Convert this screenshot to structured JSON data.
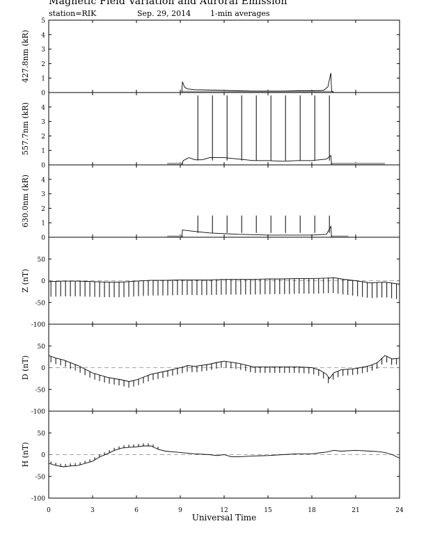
{
  "header": {
    "title": "Magnetic Field Variation and Auroral Emission",
    "station": "station=RIK",
    "date": "Sep. 29, 2014",
    "averaging": "1-min averages"
  },
  "chart_data": [
    {
      "type": "line",
      "ylabel": "427.8nm (kR)",
      "ylim": [
        0,
        5
      ],
      "yticks": [
        0,
        1,
        2,
        3,
        4,
        5
      ],
      "xlim": [
        0,
        24
      ],
      "x_ticks": [
        0,
        3,
        6,
        9,
        12,
        15,
        18,
        21,
        24
      ],
      "baseline": null,
      "gray_bars": [
        {
          "x": [
            9.1,
            19.5
          ],
          "y": 0.05
        }
      ],
      "series": [
        {
          "x": [
            0,
            9.1,
            9.15,
            9.3,
            9.5,
            10,
            11,
            12,
            13,
            14,
            15,
            16,
            17,
            18,
            18.8,
            19.1,
            19.3,
            19.35,
            19.5,
            24
          ],
          "y": [
            0,
            0,
            0.75,
            0.35,
            0.25,
            0.2,
            0.18,
            0.15,
            0.12,
            0.1,
            0.1,
            0.1,
            0.12,
            0.12,
            0.15,
            0.4,
            1.35,
            0.1,
            0,
            0
          ]
        }
      ],
      "spikes": []
    },
    {
      "type": "line",
      "ylabel": "557.7nm (kR)",
      "ylim": [
        0,
        5
      ],
      "yticks": [
        0,
        1,
        2,
        3,
        4
      ],
      "xlim": [
        0,
        24
      ],
      "x_ticks": [
        0,
        3,
        6,
        9,
        12,
        15,
        18,
        21,
        24
      ],
      "baseline": null,
      "gray_bars": [
        {
          "x": [
            8.1,
            9.2
          ],
          "y": 0.08
        },
        {
          "x": [
            19.3,
            23
          ],
          "y": 0.08
        }
      ],
      "series": [
        {
          "x": [
            0,
            9.1,
            9.2,
            9.6,
            10,
            10.5,
            11,
            12,
            13,
            14,
            15,
            16,
            17,
            18,
            19,
            19.3,
            19.35,
            24
          ],
          "y": [
            0,
            0,
            0.3,
            0.5,
            0.35,
            0.35,
            0.5,
            0.5,
            0.4,
            0.3,
            0.3,
            0.25,
            0.3,
            0.3,
            0.4,
            0.65,
            0,
            0
          ]
        }
      ],
      "spikes": [
        {
          "x": 10.2,
          "y": 4.8
        },
        {
          "x": 11.2,
          "y": 4.8
        },
        {
          "x": 12.2,
          "y": 4.8
        },
        {
          "x": 13.2,
          "y": 4.8
        },
        {
          "x": 14.2,
          "y": 4.8
        },
        {
          "x": 15.2,
          "y": 4.8
        },
        {
          "x": 16.2,
          "y": 4.8
        },
        {
          "x": 17.2,
          "y": 4.8
        },
        {
          "x": 18.2,
          "y": 4.8
        },
        {
          "x": 19.2,
          "y": 4.8
        }
      ]
    },
    {
      "type": "line",
      "ylabel": "630.0nm (kR)",
      "ylim": [
        0,
        5
      ],
      "yticks": [
        0,
        1,
        2,
        3,
        4
      ],
      "xlim": [
        0,
        24
      ],
      "x_ticks": [
        0,
        3,
        6,
        9,
        12,
        15,
        18,
        21,
        24
      ],
      "baseline": null,
      "gray_bars": [
        {
          "x": [
            8.1,
            9.2
          ],
          "y": 0.05
        },
        {
          "x": [
            19.3,
            20.5
          ],
          "y": 0.05
        }
      ],
      "series": [
        {
          "x": [
            0,
            9.1,
            9.15,
            10,
            11,
            12,
            13,
            14,
            15,
            16,
            17,
            18,
            19,
            19.3,
            19.35,
            24
          ],
          "y": [
            0,
            0,
            0.5,
            0.4,
            0.3,
            0.25,
            0.2,
            0.18,
            0.15,
            0.15,
            0.15,
            0.15,
            0.2,
            0.75,
            0,
            0
          ]
        }
      ],
      "spikes": [
        {
          "x": 10.2,
          "y": 1.5
        },
        {
          "x": 11.2,
          "y": 1.5
        },
        {
          "x": 12.2,
          "y": 1.5
        },
        {
          "x": 13.2,
          "y": 1.5
        },
        {
          "x": 14.2,
          "y": 1.5
        },
        {
          "x": 15.2,
          "y": 1.5
        },
        {
          "x": 16.2,
          "y": 1.5
        },
        {
          "x": 17.2,
          "y": 1.5
        },
        {
          "x": 18.2,
          "y": 1.5
        },
        {
          "x": 19.2,
          "y": 1.5
        }
      ]
    },
    {
      "type": "line",
      "ylabel": "Z (nT)",
      "ylim": [
        -100,
        100
      ],
      "yticks": [
        -100,
        -50,
        0,
        50
      ],
      "xlim": [
        0,
        24
      ],
      "x_ticks": [
        0,
        3,
        6,
        9,
        12,
        15,
        18,
        21,
        24
      ],
      "baseline": 0,
      "gray_bars": [],
      "series": [
        {
          "x": [
            0,
            1,
            2,
            3,
            4,
            5,
            6,
            7,
            8,
            9,
            10,
            11,
            12,
            13,
            14,
            15,
            16,
            17,
            18,
            19,
            19.5,
            20,
            21,
            22,
            23,
            24
          ],
          "y": [
            -2,
            -1,
            -1,
            -2,
            -3,
            -3,
            -1,
            1,
            1,
            2,
            2,
            2,
            3,
            3,
            3,
            4,
            4,
            5,
            5,
            6,
            7,
            4,
            0,
            -5,
            -3,
            -8
          ]
        }
      ],
      "whiskers": {
        "every": 0.333,
        "depth": -35
      }
    },
    {
      "type": "line",
      "ylabel": "D (nT)",
      "ylim": [
        -100,
        100
      ],
      "yticks": [
        -100,
        -50,
        0,
        50
      ],
      "xlim": [
        0,
        24
      ],
      "x_ticks": [
        0,
        3,
        6,
        9,
        12,
        15,
        18,
        21,
        24
      ],
      "baseline": 0,
      "gray_bars": [],
      "series": [
        {
          "x": [
            0,
            0.5,
            1,
            2,
            3,
            4,
            5,
            5.5,
            6,
            7,
            8,
            9,
            9.5,
            10,
            11,
            11.5,
            12,
            13,
            14,
            15,
            16,
            17,
            18,
            18.5,
            19,
            19.2,
            19.5,
            20,
            21,
            22,
            22.5,
            23,
            23.5,
            24
          ],
          "y": [
            28,
            22,
            18,
            5,
            -12,
            -22,
            -28,
            -32,
            -28,
            -15,
            -8,
            0,
            5,
            3,
            8,
            12,
            15,
            10,
            2,
            2,
            2,
            2,
            0,
            -5,
            -15,
            -25,
            -12,
            -5,
            -2,
            5,
            12,
            28,
            20,
            22
          ]
        }
      ],
      "whiskers": {
        "every": 0.333,
        "depth": -14
      }
    },
    {
      "type": "line",
      "ylabel": "H (nT)",
      "ylim": [
        -100,
        100
      ],
      "yticks": [
        -100,
        -50,
        0,
        50
      ],
      "xlim": [
        0,
        24
      ],
      "x_ticks": [
        0,
        3,
        6,
        9,
        12,
        15,
        18,
        21,
        24
      ],
      "baseline": 0,
      "gray_bars": [],
      "series": [
        {
          "x": [
            0,
            0.5,
            1,
            1.5,
            2,
            2.5,
            3,
            3.5,
            4,
            4.5,
            5,
            5.5,
            6,
            6.5,
            7,
            7.5,
            8,
            9,
            10,
            11,
            11.5,
            12,
            12.5,
            13,
            14,
            15,
            16,
            17,
            18,
            18.5,
            19,
            19.5,
            20,
            21,
            22,
            22.5,
            23,
            23.5,
            24
          ],
          "y": [
            -20,
            -25,
            -28,
            -26,
            -25,
            -20,
            -15,
            -5,
            2,
            10,
            15,
            17,
            18,
            20,
            20,
            12,
            8,
            5,
            2,
            0,
            -2,
            0,
            -5,
            -5,
            -3,
            -2,
            0,
            2,
            2,
            4,
            6,
            10,
            8,
            10,
            8,
            7,
            5,
            0,
            -8
          ]
        }
      ],
      "whiskers": {
        "every": 0.333,
        "depth": 6,
        "end": 7.6
      }
    }
  ],
  "xaxis": {
    "label": "Universal Time",
    "tick_labels": [
      "0",
      "3",
      "6",
      "9",
      "12",
      "15",
      "18",
      "21",
      "24"
    ]
  }
}
